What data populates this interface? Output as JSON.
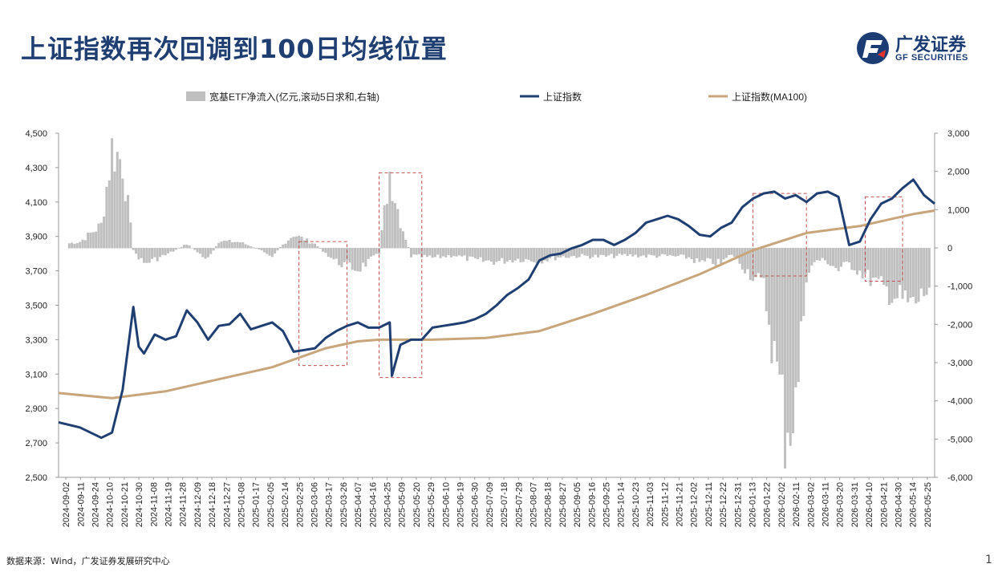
{
  "header": {
    "title": "上证指数再次回调到100日均线位置",
    "logo_cn": "广发证券",
    "logo_en": "GF SECURITIES"
  },
  "footer": {
    "source": "数据来源：Wind，广发证券发展研究中心",
    "page": "1"
  },
  "colors": {
    "bars": "#bfbfbf",
    "index": "#1f3f73",
    "ma": "#c8a57a",
    "highlight": "#c0504d",
    "title": "#1f3f73"
  },
  "chart_data": {
    "type": "line",
    "legend": [
      "宽基ETF净流入(亿元,滚动5日求和,右轴)",
      "上证指数",
      "上证指数(MA100)"
    ],
    "legend_position": "top",
    "y_left": {
      "ticks": [
        "2,500",
        "2,700",
        "2,900",
        "3,100",
        "3,300",
        "3,500",
        "3,700",
        "3,900",
        "4,100",
        "4,300",
        "4,500"
      ],
      "min": 2500,
      "max": 4500
    },
    "y_right": {
      "ticks": [
        "-6,000",
        "-5,000",
        "-4,000",
        "-3,000",
        "-2,000",
        "-1,000",
        "0",
        "1,000",
        "2,000",
        "3,000"
      ],
      "min": -6000,
      "max": 3000
    },
    "x_labels": [
      "2024-09-02",
      "2024-09-11",
      "2024-09-24",
      "2024-10-10",
      "2024-10-21",
      "2024-10-30",
      "2024-11-08",
      "2024-11-19",
      "2024-11-28",
      "2024-12-09",
      "2024-12-18",
      "2024-12-27",
      "2025-01-08",
      "2025-01-17",
      "2025-02-05",
      "2025-02-14",
      "2025-02-25",
      "2025-03-06",
      "2025-03-17",
      "2025-03-26",
      "2025-04-07",
      "2025-04-16",
      "2025-04-25",
      "2025-05-09",
      "2025-05-20",
      "2025-05-29",
      "2025-06-10",
      "2025-06-19",
      "2025-06-30",
      "2025-07-09",
      "2025-07-18",
      "2025-07-29",
      "2025-08-07",
      "2025-08-18",
      "2025-08-27",
      "2025-09-05",
      "2025-09-16",
      "2025-09-25",
      "2025-10-14",
      "2025-10-23",
      "2025-11-03",
      "2025-11-12",
      "2025-11-21",
      "2025-12-02",
      "2025-12-11",
      "2025-12-22",
      "2025-12-31",
      "2026-01-13",
      "2026-01-22",
      "2026-02-02",
      "2026-02-11",
      "2026-03-02",
      "2026-03-11",
      "2026-03-20",
      "2026-03-31",
      "2026-04-10",
      "2026-04-21",
      "2026-04-30",
      "2026-05-14",
      "2026-05-25"
    ],
    "index_series": [
      [
        0,
        2820
      ],
      [
        2,
        2790
      ],
      [
        4,
        2730
      ],
      [
        5,
        2760
      ],
      [
        6,
        3010
      ],
      [
        7,
        3490
      ],
      [
        7.5,
        3260
      ],
      [
        8,
        3220
      ],
      [
        9,
        3330
      ],
      [
        10,
        3300
      ],
      [
        11,
        3320
      ],
      [
        12,
        3470
      ],
      [
        13,
        3400
      ],
      [
        14,
        3300
      ],
      [
        15,
        3380
      ],
      [
        16,
        3390
      ],
      [
        17,
        3450
      ],
      [
        18,
        3360
      ],
      [
        19,
        3380
      ],
      [
        20,
        3400
      ],
      [
        21,
        3350
      ],
      [
        22,
        3230
      ],
      [
        23,
        3240
      ],
      [
        24,
        3250
      ],
      [
        25,
        3310
      ],
      [
        26,
        3350
      ],
      [
        27,
        3380
      ],
      [
        28,
        3400
      ],
      [
        29,
        3370
      ],
      [
        30,
        3370
      ],
      [
        31,
        3400
      ],
      [
        31.2,
        3090
      ],
      [
        32,
        3270
      ],
      [
        33,
        3300
      ],
      [
        34,
        3300
      ],
      [
        35,
        3370
      ],
      [
        36,
        3380
      ],
      [
        37,
        3390
      ],
      [
        38,
        3400
      ],
      [
        39,
        3420
      ],
      [
        40,
        3450
      ],
      [
        41,
        3500
      ],
      [
        42,
        3560
      ],
      [
        43,
        3600
      ],
      [
        44,
        3650
      ],
      [
        45,
        3760
      ],
      [
        46,
        3790
      ],
      [
        47,
        3800
      ],
      [
        48,
        3830
      ],
      [
        49,
        3850
      ],
      [
        50,
        3880
      ],
      [
        51,
        3880
      ],
      [
        52,
        3850
      ],
      [
        53,
        3880
      ],
      [
        54,
        3920
      ],
      [
        55,
        3980
      ],
      [
        56,
        4000
      ],
      [
        57,
        4020
      ],
      [
        58,
        4000
      ],
      [
        59,
        3960
      ],
      [
        60,
        3910
      ],
      [
        61,
        3900
      ],
      [
        62,
        3950
      ],
      [
        63,
        3980
      ],
      [
        64,
        4070
      ],
      [
        65,
        4120
      ],
      [
        66,
        4150
      ],
      [
        67,
        4160
      ],
      [
        68,
        4120
      ],
      [
        69,
        4140
      ],
      [
        70,
        4100
      ],
      [
        71,
        4150
      ],
      [
        72,
        4160
      ],
      [
        73,
        4130
      ],
      [
        74,
        3850
      ],
      [
        75,
        3870
      ],
      [
        76,
        4000
      ],
      [
        77,
        4090
      ],
      [
        78,
        4120
      ],
      [
        79,
        4180
      ],
      [
        80,
        4230
      ],
      [
        81,
        4140
      ],
      [
        82,
        4090
      ]
    ],
    "ma100_series": [
      [
        0,
        2990
      ],
      [
        5,
        2960
      ],
      [
        10,
        3000
      ],
      [
        15,
        3070
      ],
      [
        20,
        3140
      ],
      [
        25,
        3250
      ],
      [
        28,
        3290
      ],
      [
        30,
        3300
      ],
      [
        35,
        3300
      ],
      [
        40,
        3310
      ],
      [
        45,
        3350
      ],
      [
        50,
        3450
      ],
      [
        55,
        3560
      ],
      [
        60,
        3680
      ],
      [
        65,
        3820
      ],
      [
        70,
        3920
      ],
      [
        75,
        3960
      ],
      [
        80,
        4030
      ],
      [
        82,
        4050
      ]
    ],
    "etf_flow_series": [
      [
        0,
        80
      ],
      [
        2,
        160
      ],
      [
        4,
        600
      ],
      [
        5,
        2600
      ],
      [
        6,
        2250
      ],
      [
        7,
        -60
      ],
      [
        8,
        -400
      ],
      [
        10,
        -180
      ],
      [
        12,
        100
      ],
      [
        14,
        -300
      ],
      [
        15,
        180
      ],
      [
        17,
        150
      ],
      [
        19,
        -60
      ],
      [
        20,
        -180
      ],
      [
        22,
        350
      ],
      [
        24,
        100
      ],
      [
        26,
        -350
      ],
      [
        28,
        -550
      ],
      [
        30,
        -150
      ],
      [
        31,
        2000
      ],
      [
        32,
        700
      ],
      [
        33,
        -200
      ],
      [
        35,
        -250
      ],
      [
        37,
        -180
      ],
      [
        39,
        -320
      ],
      [
        41,
        -350
      ],
      [
        43,
        -280
      ],
      [
        45,
        -320
      ],
      [
        47,
        -220
      ],
      [
        49,
        -200
      ],
      [
        51,
        -220
      ],
      [
        53,
        -180
      ],
      [
        55,
        -200
      ],
      [
        57,
        -200
      ],
      [
        59,
        -240
      ],
      [
        60,
        -380
      ],
      [
        61,
        -350
      ],
      [
        62,
        -400
      ],
      [
        63,
        -150
      ],
      [
        64,
        -450
      ],
      [
        66,
        -1000
      ],
      [
        67,
        -2800
      ],
      [
        68,
        -4600
      ],
      [
        69,
        -4200
      ],
      [
        70,
        -700
      ],
      [
        71,
        -300
      ],
      [
        72,
        -350
      ],
      [
        73,
        -560
      ],
      [
        74,
        -400
      ],
      [
        76,
        -800
      ],
      [
        78,
        -1200
      ],
      [
        80,
        -1500
      ],
      [
        82,
        -880
      ]
    ],
    "highlight_boxes": [
      {
        "x0": 22.5,
        "x1": 27,
        "y0": 3150,
        "y1": 3870
      },
      {
        "x0": 30,
        "x1": 34,
        "y0": 3080,
        "y1": 4270
      },
      {
        "x0": 65,
        "x1": 70,
        "y0": 3670,
        "y1": 4150
      },
      {
        "x0": 75.5,
        "x1": 79,
        "y0": 3640,
        "y1": 4130
      }
    ]
  }
}
